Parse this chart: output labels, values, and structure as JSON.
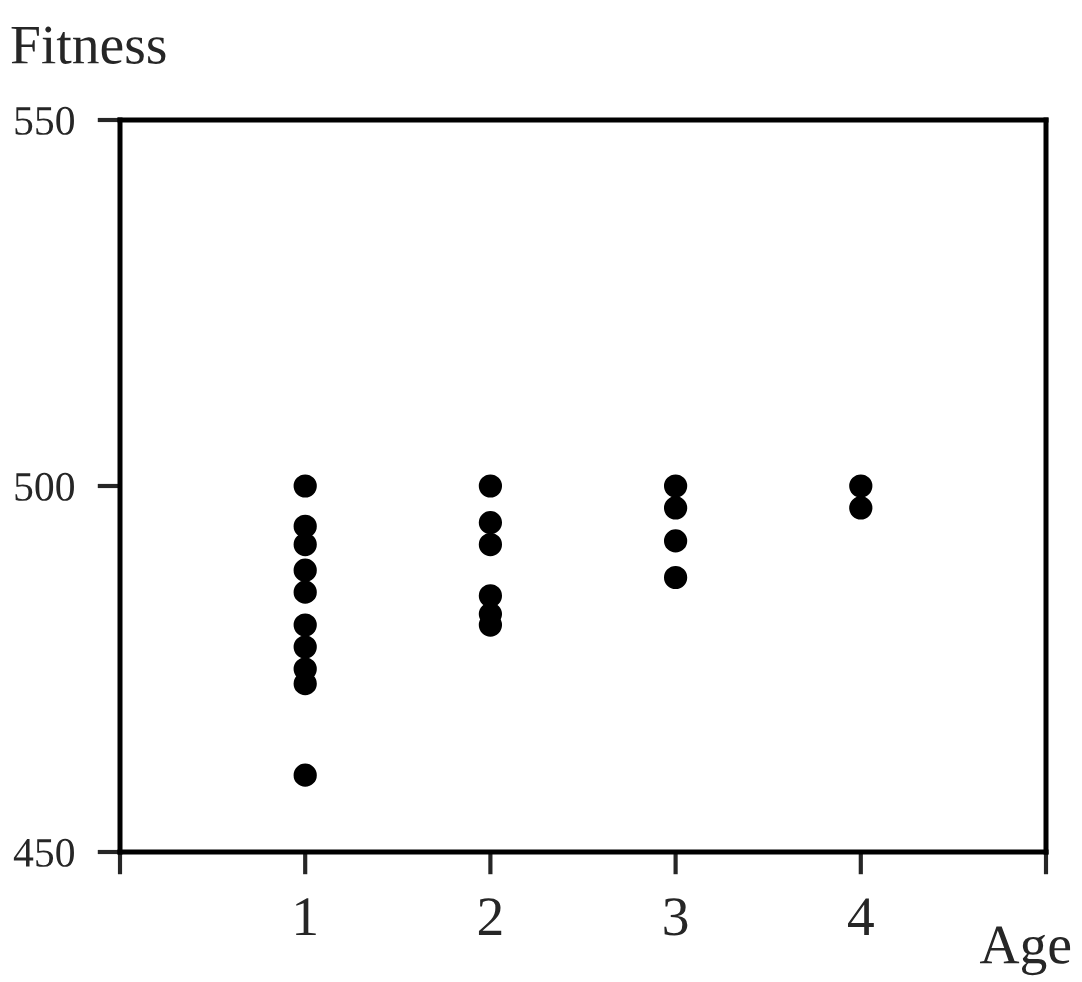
{
  "chart_data": {
    "type": "scatter",
    "ylabel": "Fitness",
    "xlabel": "Age",
    "x": [
      1,
      1,
      1,
      1,
      1,
      1,
      1,
      1,
      1,
      1,
      2,
      2,
      2,
      2,
      2,
      2,
      3,
      3,
      3,
      3,
      4,
      4
    ],
    "values": [
      500,
      494.5,
      492,
      488.5,
      485.5,
      481,
      478,
      475,
      473,
      460.5,
      500,
      495,
      492,
      485,
      482.5,
      481,
      500,
      497,
      492.5,
      487.5,
      500,
      497
    ],
    "color": "#000000",
    "marker": "circle",
    "xlim": [
      0,
      5
    ],
    "xticks": [
      {
        "value": 0,
        "label": null
      },
      1,
      2,
      3,
      4,
      {
        "value": 5,
        "label": null
      }
    ],
    "ylim": [
      450,
      550
    ],
    "yticks": [
      450,
      500,
      550
    ],
    "grid": false
  }
}
